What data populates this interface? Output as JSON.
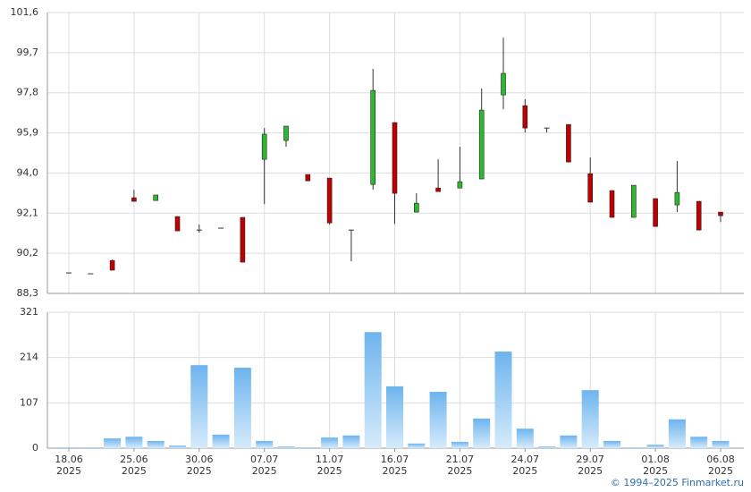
{
  "chart_data": [
    {
      "type": "candlestick",
      "open": [
        89.27,
        89.23,
        89.86,
        92.83,
        92.7,
        91.94,
        91.3,
        91.39,
        91.9,
        94.65,
        95.54,
        93.93,
        93.76,
        91.3,
        93.46,
        96.39,
        92.15,
        93.29,
        93.29,
        93.72,
        97.7,
        97.19,
        96.13,
        96.3,
        93.97,
        93.17,
        91.9,
        92.79,
        92.49,
        92.66,
        92.15
      ],
      "high": [
        89.27,
        89.23,
        89.9,
        93.2,
        92.96,
        91.94,
        91.56,
        91.39,
        91.9,
        96.13,
        96.22,
        93.93,
        93.76,
        91.3,
        98.93,
        96.39,
        93.04,
        94.65,
        95.24,
        98.0,
        100.41,
        97.49,
        96.13,
        96.3,
        94.74,
        93.17,
        93.42,
        92.79,
        94.57,
        92.66,
        92.15
      ],
      "low": [
        89.27,
        89.23,
        89.4,
        92.66,
        92.7,
        91.26,
        91.18,
        91.39,
        89.78,
        92.53,
        95.24,
        93.63,
        91.56,
        89.82,
        93.21,
        91.6,
        92.15,
        93.12,
        93.29,
        93.72,
        97.02,
        95.92,
        95.92,
        94.52,
        92.62,
        91.9,
        91.9,
        91.47,
        92.15,
        91.3,
        91.68
      ],
      "close": [
        89.27,
        89.23,
        89.4,
        92.66,
        92.96,
        91.26,
        91.3,
        91.39,
        89.78,
        95.84,
        96.22,
        93.63,
        91.64,
        91.3,
        97.91,
        93.04,
        92.57,
        93.12,
        93.59,
        96.98,
        98.72,
        96.13,
        96.13,
        94.52,
        92.62,
        91.9,
        93.42,
        91.47,
        93.08,
        91.3,
        91.98
      ],
      "up_color": "#2db92d",
      "down_color": "#c00000",
      "ylim": [
        88.3,
        101.6
      ],
      "yticks": [
        {
          "value": 88.3,
          "label": "88,3"
        },
        {
          "value": 90.2,
          "label": "90,2"
        },
        {
          "value": 92.1,
          "label": "92,1"
        },
        {
          "value": 94.0,
          "label": "94,0"
        },
        {
          "value": 95.9,
          "label": "95,9"
        },
        {
          "value": 97.8,
          "label": "97,8"
        },
        {
          "value": 99.7,
          "label": "99,7"
        },
        {
          "value": 101.6,
          "label": "101,6"
        }
      ],
      "grid": true
    },
    {
      "type": "bar",
      "categories": [
        "18.06\n2025",
        null,
        null,
        "25.06\n2025",
        null,
        null,
        "30.06\n2025",
        null,
        null,
        "07.07\n2025",
        null,
        null,
        "11.07\n2025",
        null,
        null,
        "16.07\n2025",
        null,
        null,
        "21.07\n2025",
        null,
        null,
        "24.07\n2025",
        null,
        null,
        "29.07\n2025",
        null,
        null,
        "01.08\n2025",
        null,
        null,
        "06.08\n2025"
      ],
      "values": [
        2,
        2,
        23,
        27,
        17,
        6,
        196,
        32,
        190,
        17,
        4,
        2,
        25,
        30,
        274,
        146,
        11,
        133,
        15,
        70,
        228,
        46,
        4,
        30,
        137,
        17,
        2,
        8,
        68,
        27,
        17
      ],
      "color": "#7fbdf0",
      "ylim": [
        0,
        321
      ],
      "yticks": [
        0,
        107,
        214,
        321
      ],
      "grid": true
    }
  ],
  "footer": {
    "copyright": "© 1994–2025 Finmarket.ru"
  }
}
